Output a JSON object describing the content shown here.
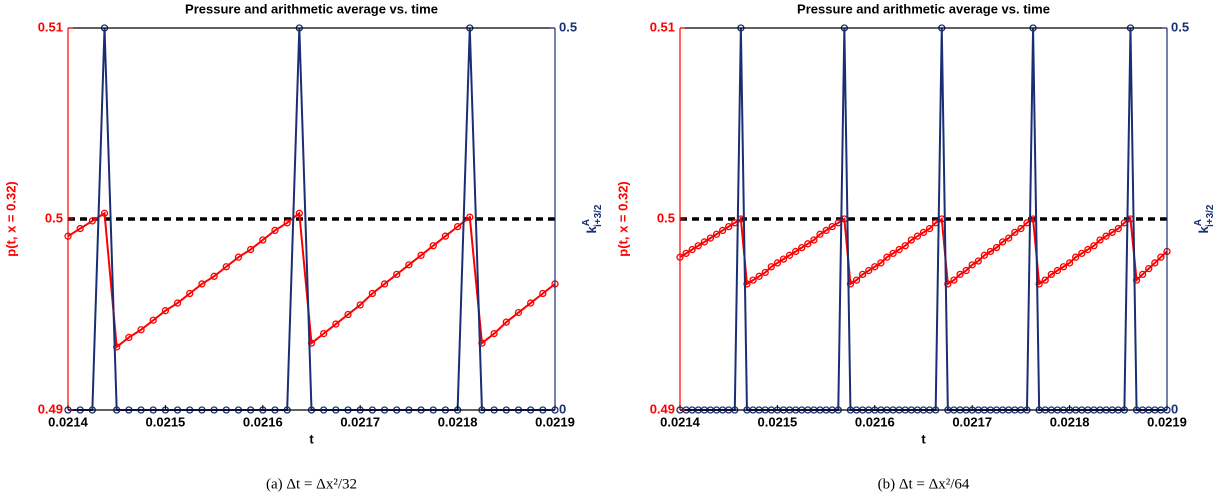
{
  "chart_data": [
    {
      "type": "line",
      "title": "Pressure and arithmetic average vs. time",
      "xlabel": "t",
      "ylabel": "p(t, x = 0.32)",
      "y2label": {
        "base": "k",
        "sup": "A",
        "sub": "i+3/2"
      },
      "caption": "(a) Δt = Δx²/32",
      "xlim": [
        0.0214,
        0.0219
      ],
      "xticks": [
        0.0214,
        0.0215,
        0.0216,
        0.0217,
        0.0218,
        0.0219
      ],
      "ylim": [
        0.49,
        0.51
      ],
      "yticks": [
        0.49,
        0.5,
        0.51
      ],
      "y2lim": [
        0,
        0.5
      ],
      "y2ticks": [
        0,
        0.5
      ],
      "reference_line": 0.5,
      "x": [
        0.0214,
        0.0214125,
        0.021425,
        0.0214375,
        0.02145,
        0.0214625,
        0.021475,
        0.0214875,
        0.0215,
        0.0215125,
        0.021525,
        0.0215375,
        0.02155,
        0.0215625,
        0.021575,
        0.0215875,
        0.0216,
        0.0216125,
        0.021625,
        0.0216375,
        0.02165,
        0.0216625,
        0.021675,
        0.0216875,
        0.0217,
        0.0217125,
        0.021725,
        0.0217375,
        0.02175,
        0.0217625,
        0.021775,
        0.0217875,
        0.0218,
        0.0218125,
        0.021825,
        0.0218375,
        0.02185,
        0.0218625,
        0.021875,
        0.0218875,
        0.0219
      ],
      "series": [
        {
          "color": "#ff0000",
          "values": [
            0.4991,
            0.4995,
            0.4999,
            0.5003,
            0.4933,
            0.4938,
            0.4942,
            0.4947,
            0.4952,
            0.4956,
            0.4961,
            0.4966,
            0.497,
            0.4975,
            0.498,
            0.4984,
            0.4989,
            0.4994,
            0.4998,
            0.5003,
            0.4935,
            0.494,
            0.4945,
            0.495,
            0.4955,
            0.4961,
            0.4966,
            0.4971,
            0.4976,
            0.4981,
            0.4986,
            0.4991,
            0.4996,
            0.5001,
            0.4935,
            0.494,
            0.4946,
            0.4951,
            0.4956,
            0.4961,
            0.4966
          ]
        },
        {
          "color": "#1a2f73",
          "axis": "y2",
          "values": [
            0,
            0,
            0,
            0.5,
            0,
            0,
            0,
            0,
            0,
            0,
            0,
            0,
            0,
            0,
            0,
            0,
            0,
            0,
            0,
            0.5,
            0,
            0,
            0,
            0,
            0,
            0,
            0,
            0,
            0,
            0,
            0,
            0,
            0,
            0.5,
            0,
            0,
            0,
            0,
            0,
            0,
            0
          ]
        }
      ]
    },
    {
      "type": "line",
      "title": "Pressure and arithmetic average vs. time",
      "xlabel": "t",
      "ylabel": "p(t, x = 0.32)",
      "y2label": {
        "base": "k",
        "sup": "A",
        "sub": "i+3/2"
      },
      "caption": "(b) Δt = Δx²/64",
      "xlim": [
        0.0214,
        0.0219
      ],
      "xticks": [
        0.0214,
        0.0215,
        0.0216,
        0.0217,
        0.0218,
        0.0219
      ],
      "ylim": [
        0.49,
        0.51
      ],
      "yticks": [
        0.49,
        0.5,
        0.51
      ],
      "y2lim": [
        0,
        0.5
      ],
      "y2ticks": [
        0,
        0.5
      ],
      "reference_line": 0.5,
      "x": [
        0.0214,
        0.02140625,
        0.0214125,
        0.02141875,
        0.021425,
        0.02143125,
        0.0214375,
        0.02144375,
        0.02145,
        0.02145625,
        0.0214625,
        0.02146875,
        0.021475,
        0.02148125,
        0.0214875,
        0.02149375,
        0.0215,
        0.02150625,
        0.0215125,
        0.02151875,
        0.021525,
        0.02153125,
        0.0215375,
        0.02154375,
        0.02155,
        0.02155625,
        0.0215625,
        0.02156875,
        0.021575,
        0.02158125,
        0.0215875,
        0.02159375,
        0.0216,
        0.02160625,
        0.0216125,
        0.02161875,
        0.021625,
        0.02163125,
        0.0216375,
        0.02164375,
        0.02165,
        0.02165625,
        0.0216625,
        0.02166875,
        0.021675,
        0.02168125,
        0.0216875,
        0.02169375,
        0.0217,
        0.02170625,
        0.0217125,
        0.02171875,
        0.021725,
        0.02173125,
        0.0217375,
        0.02174375,
        0.02175,
        0.02175625,
        0.0217625,
        0.02176875,
        0.021775,
        0.02178125,
        0.0217875,
        0.02179375,
        0.0218,
        0.02180625,
        0.0218125,
        0.02181875,
        0.021825,
        0.02183125,
        0.0218375,
        0.02184375,
        0.02185,
        0.02185625,
        0.0218625,
        0.02186875,
        0.021875,
        0.02188125,
        0.0218875,
        0.02189375,
        0.0219
      ],
      "series": [
        {
          "color": "#ff0000",
          "values": [
            0.498,
            0.4982,
            0.4984,
            0.4986,
            0.4988,
            0.499,
            0.4992,
            0.4994,
            0.4996,
            0.4998,
            0.5,
            0.4966,
            0.4968,
            0.497,
            0.4972,
            0.4975,
            0.4977,
            0.4979,
            0.4981,
            0.4983,
            0.4985,
            0.4987,
            0.4989,
            0.4992,
            0.4994,
            0.4996,
            0.4998,
            0.5,
            0.4966,
            0.4968,
            0.4971,
            0.4973,
            0.4975,
            0.4977,
            0.498,
            0.4982,
            0.4984,
            0.4986,
            0.4989,
            0.4991,
            0.4993,
            0.4995,
            0.4998,
            0.5,
            0.4966,
            0.4968,
            0.4971,
            0.4973,
            0.4976,
            0.4978,
            0.4981,
            0.4983,
            0.4985,
            0.4988,
            0.499,
            0.4993,
            0.4995,
            0.4998,
            0.5,
            0.4966,
            0.4968,
            0.4971,
            0.4973,
            0.4975,
            0.4977,
            0.498,
            0.4982,
            0.4984,
            0.4986,
            0.4989,
            0.4991,
            0.4993,
            0.4995,
            0.4998,
            0.5,
            0.4968,
            0.4971,
            0.4974,
            0.4977,
            0.498,
            0.4983
          ]
        },
        {
          "color": "#1a2f73",
          "axis": "y2",
          "values": [
            0,
            0,
            0,
            0,
            0,
            0,
            0,
            0,
            0,
            0,
            0.5,
            0,
            0,
            0,
            0,
            0,
            0,
            0,
            0,
            0,
            0,
            0,
            0,
            0,
            0,
            0,
            0,
            0.5,
            0,
            0,
            0,
            0,
            0,
            0,
            0,
            0,
            0,
            0,
            0,
            0,
            0,
            0,
            0,
            0.5,
            0,
            0,
            0,
            0,
            0,
            0,
            0,
            0,
            0,
            0,
            0,
            0,
            0,
            0,
            0.5,
            0,
            0,
            0,
            0,
            0,
            0,
            0,
            0,
            0,
            0,
            0,
            0,
            0,
            0,
            0,
            0.5,
            0,
            0,
            0,
            0,
            0,
            0
          ]
        }
      ]
    }
  ]
}
